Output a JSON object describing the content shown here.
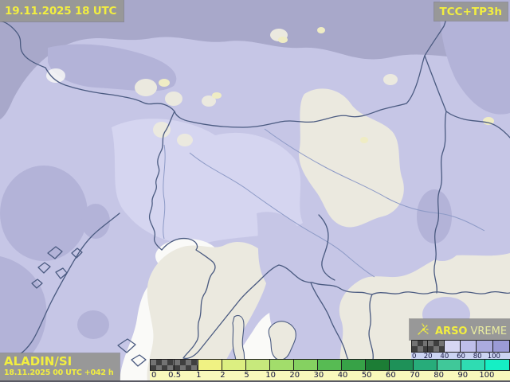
{
  "header": {
    "valid_datetime": "19.11.2025 18 UTC",
    "product_code": "TCC+TP3h"
  },
  "model_info": {
    "model_name": "ALADIN/SI",
    "run_info": "18.11.2025 00 UTC +042 h"
  },
  "branding": {
    "agency": "ARSO",
    "service": "VREME",
    "logo_icon": "sun-icon"
  },
  "precip_legend": {
    "tick_labels": [
      "0",
      "0.5",
      "1",
      "2",
      "5",
      "10",
      "20",
      "30",
      "40",
      "50",
      "60",
      "70",
      "80",
      "90",
      "100"
    ],
    "cells": [
      "checker",
      "checker",
      "#f0f283",
      "#dcef81",
      "#c7e97c",
      "#a2dd6b",
      "#85d161",
      "#57bb53",
      "#37a247",
      "#1c7d35",
      "#1e9158",
      "#27ac7a",
      "#40c899",
      "#2fdcb2",
      "#15efc5"
    ],
    "label_strip_bg": "#f8f8bb"
  },
  "cloud_legend": {
    "tick_labels": [
      "0",
      "20",
      "40",
      "60",
      "80",
      "100"
    ],
    "cells": [
      "checker",
      "checker",
      "#d6d6f3",
      "#bfbfeb",
      "#ababdf",
      "#9b9bd6"
    ],
    "label_strip_bg": "#ccd4f2"
  },
  "map_palette": {
    "cloud_light": "#d5d5f0",
    "cloud_mid": "#c6c6e6",
    "cloud_dark": "#b3b3d8",
    "cloud_darkest": "#a8a8ca",
    "clear_land": "#ebe9df",
    "clear_bright": "#fafaf8",
    "terrain_spot": "#efecc4",
    "border_line": "#4a5a80",
    "river_line": "#8d9ac6",
    "text_yellow": "#f2ee40",
    "panel_gray": "#989898"
  }
}
